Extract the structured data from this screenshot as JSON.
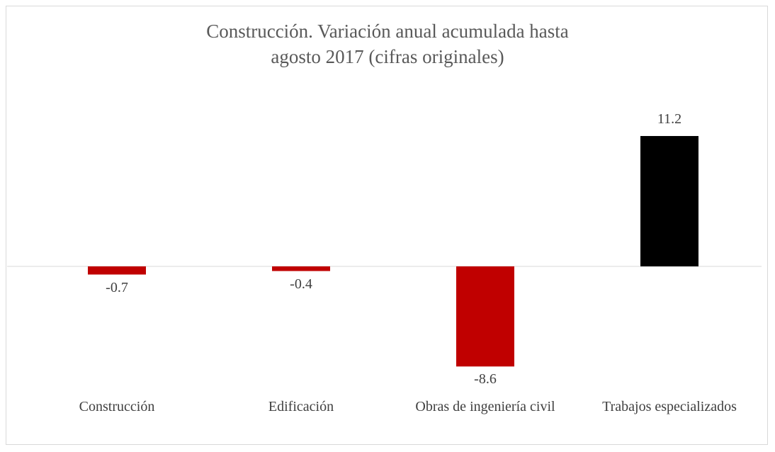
{
  "chart_data": {
    "type": "bar",
    "title": "Construcción. Variación anual acumulada hasta agosto 2017 (cifras originales)",
    "categories": [
      "Construcción",
      "Edificación",
      "Obras de ingeniería civil",
      "Trabajos especializados"
    ],
    "values": [
      -0.7,
      -0.4,
      -8.6,
      11.2
    ],
    "colors": [
      "#c00000",
      "#c00000",
      "#c00000",
      "#000000"
    ]
  }
}
